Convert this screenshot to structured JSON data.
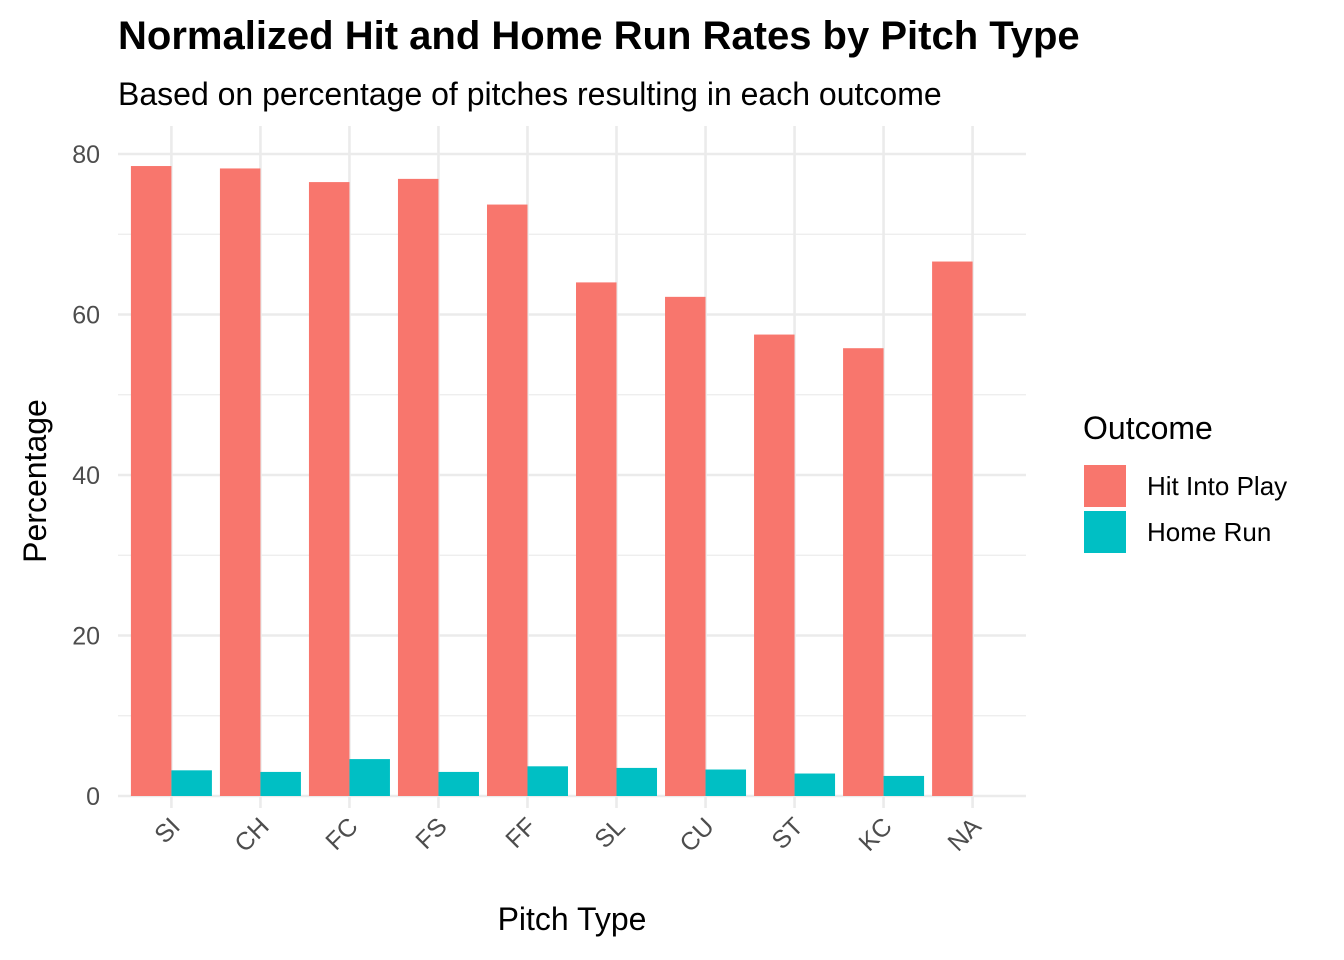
{
  "chart_data": {
    "type": "bar",
    "title": "Normalized Hit and Home Run Rates by Pitch Type",
    "subtitle": "Based on percentage of pitches resulting in each outcome",
    "xlabel": "Pitch Type",
    "ylabel": "Percentage",
    "ylim": [
      0,
      82
    ],
    "yticks": [
      0,
      20,
      40,
      60,
      80
    ],
    "ytick_labels": [
      "0",
      "20",
      "40",
      "60",
      "80"
    ],
    "grid": true,
    "categories": [
      "SI",
      "CH",
      "FC",
      "FS",
      "FF",
      "SL",
      "CU",
      "ST",
      "KC",
      "NA"
    ],
    "series": [
      {
        "name": "Hit Into Play",
        "color": "#F8766D",
        "values": [
          78.5,
          78.2,
          76.5,
          76.9,
          73.7,
          64.0,
          62.2,
          57.5,
          55.8,
          66.6
        ]
      },
      {
        "name": "Home Run",
        "color": "#00BFC4",
        "values": [
          3.2,
          3.0,
          4.6,
          3.0,
          3.7,
          3.5,
          3.3,
          2.8,
          2.5,
          null
        ]
      }
    ],
    "legend": {
      "title": "Outcome",
      "position": "right"
    }
  }
}
